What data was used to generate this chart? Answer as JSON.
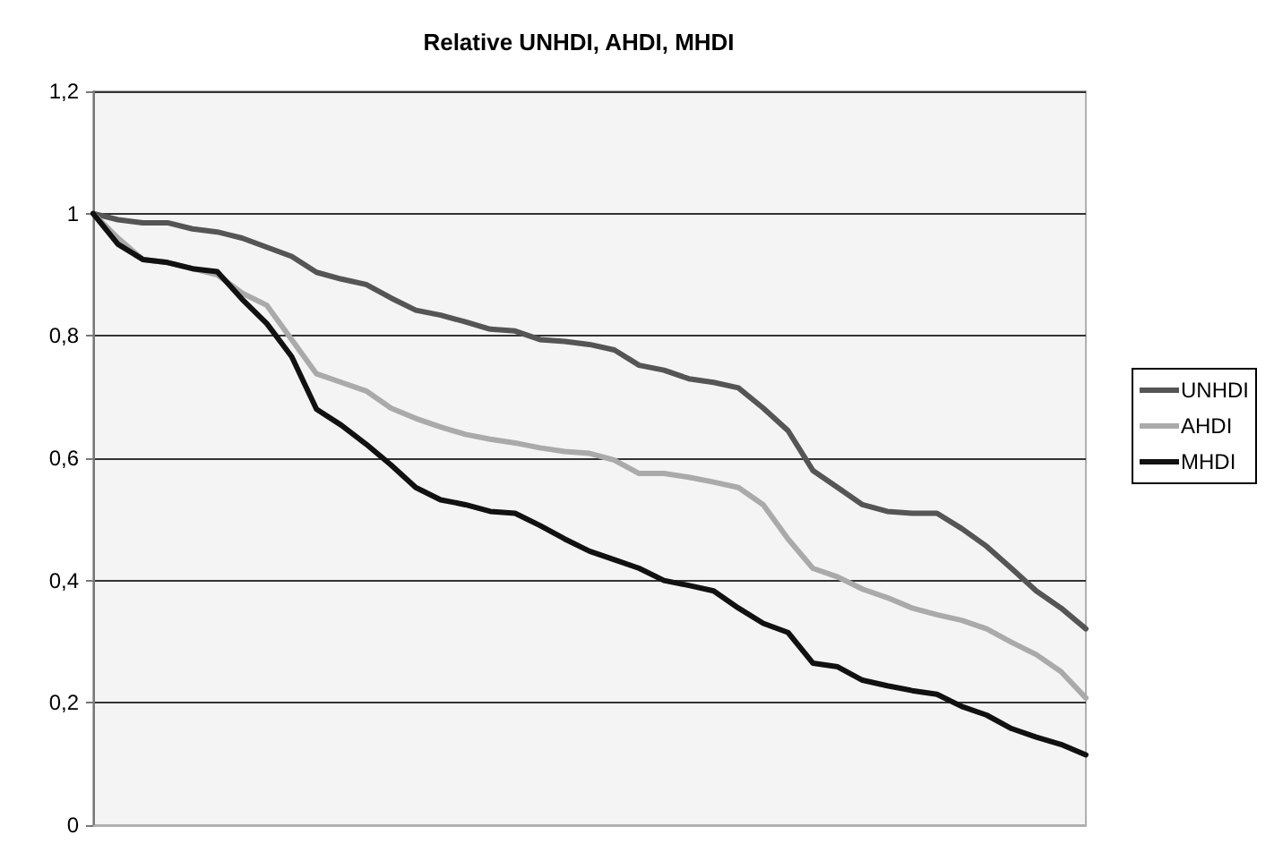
{
  "chart_data": {
    "type": "line",
    "title": "Relative UNHDI, AHDI, MHDI",
    "categories": [
      null,
      null,
      null,
      null,
      null,
      null,
      null,
      null,
      null,
      null,
      null,
      null,
      null,
      null,
      null,
      null,
      null,
      null,
      null,
      null,
      null,
      null,
      null,
      null,
      null,
      null,
      null,
      null,
      null,
      null,
      null,
      null,
      null,
      null,
      null,
      null,
      null,
      null,
      null,
      null,
      null
    ],
    "series": [
      {
        "name": "UNHDI",
        "color": "#555555",
        "values": [
          1.0,
          0.99,
          0.985,
          0.985,
          0.975,
          0.97,
          0.96,
          0.945,
          0.93,
          0.904,
          0.893,
          0.884,
          0.862,
          0.842,
          0.834,
          0.823,
          0.811,
          0.808,
          0.794,
          0.791,
          0.786,
          0.777,
          0.752,
          0.744,
          0.73,
          0.724,
          0.715,
          0.682,
          0.645,
          0.58,
          0.552,
          0.524,
          0.513,
          0.51,
          0.51,
          0.485,
          0.456,
          0.42,
          0.383,
          0.355,
          0.321
        ]
      },
      {
        "name": "AHDI",
        "color": "#aaaaaa",
        "values": [
          1.0,
          0.96,
          0.925,
          0.92,
          0.91,
          0.9,
          0.87,
          0.85,
          0.794,
          0.738,
          0.724,
          0.71,
          0.682,
          0.665,
          0.651,
          0.639,
          0.631,
          0.625,
          0.617,
          0.611,
          0.608,
          0.597,
          0.575,
          0.575,
          0.569,
          0.561,
          0.552,
          0.524,
          0.468,
          0.42,
          0.406,
          0.386,
          0.372,
          0.355,
          0.344,
          0.335,
          0.321,
          0.299,
          0.279,
          0.251,
          0.208
        ]
      },
      {
        "name": "MHDI",
        "color": "#111111",
        "values": [
          1.0,
          0.95,
          0.925,
          0.92,
          0.91,
          0.905,
          0.86,
          0.82,
          0.766,
          0.68,
          0.654,
          0.623,
          0.589,
          0.552,
          0.532,
          0.524,
          0.513,
          0.51,
          0.49,
          0.468,
          0.448,
          0.434,
          0.42,
          0.4,
          0.392,
          0.383,
          0.355,
          0.33,
          0.315,
          0.265,
          0.259,
          0.237,
          0.228,
          0.22,
          0.214,
          0.194,
          0.18,
          0.158,
          0.144,
          0.132,
          0.115
        ]
      }
    ],
    "ylim": [
      0,
      1.2
    ],
    "yticks": [
      0,
      {
        "value": 0.2,
        "label": "0,2"
      },
      {
        "value": 0.4,
        "label": "0,4"
      },
      {
        "value": 0.6,
        "label": "0,6"
      },
      {
        "value": 0.8,
        "label": "0,8"
      },
      1,
      {
        "value": 1.2,
        "label": "1,2"
      }
    ],
    "grid": "y",
    "legend": "right",
    "tick_labels": "y",
    "marker": "none",
    "line_style": "solid"
  }
}
